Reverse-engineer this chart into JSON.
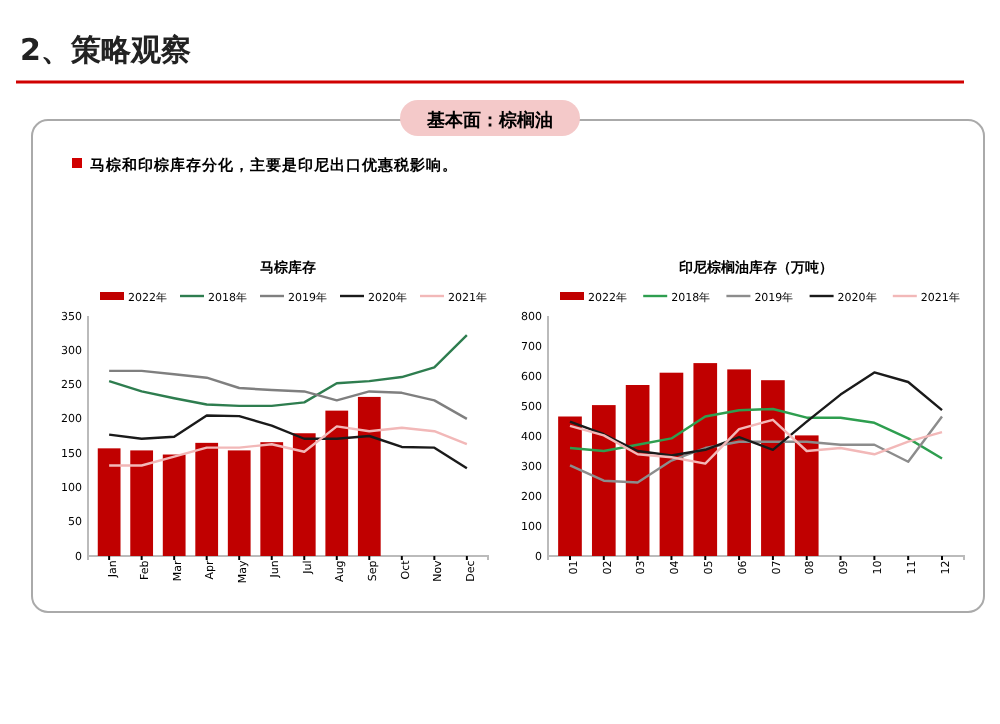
{
  "chart_data": [
    {
      "type": "bar",
      "title": "马棕库存",
      "annotations": [
        "2、策略观察",
        "基本面：棕榈油",
        "马棕和印棕库存分化，主要是印尼出口优惠税影响。"
      ],
      "categories": [
        "Jan",
        "Feb",
        "Mar",
        "Apr",
        "May",
        "Jun",
        "Jul",
        "Aug",
        "Sep",
        "Oct",
        "Nov",
        "Dec"
      ],
      "ylim": [
        0,
        350
      ],
      "yticks": [
        0,
        50,
        100,
        150,
        200,
        250,
        300,
        350
      ],
      "grid": false,
      "legend": "top",
      "series": [
        {
          "name": "2022年",
          "color": "#c00000",
          "values": [
            157,
            154,
            148,
            165,
            154,
            166,
            179,
            212,
            232,
            null,
            null,
            null
          ]
        },
        {
          "name": "2018年",
          "type": "line",
          "color": "#2e7d4f",
          "values": [
            255,
            240,
            230,
            221,
            219,
            219,
            224,
            252,
            255,
            261,
            275,
            322
          ]
        },
        {
          "name": "2019年",
          "type": "line",
          "color": "#7f7f7f",
          "values": [
            270,
            270,
            265,
            260,
            245,
            242,
            240,
            227,
            240,
            238,
            227,
            200
          ]
        },
        {
          "name": "2020年",
          "type": "line",
          "color": "#1a1a1a",
          "values": [
            177,
            171,
            174,
            205,
            204,
            190,
            171,
            171,
            175,
            159,
            158,
            128
          ]
        },
        {
          "name": "2021年",
          "type": "line",
          "color": "#f2b8b8",
          "values": [
            132,
            132,
            145,
            158,
            158,
            163,
            152,
            189,
            182,
            187,
            182,
            163
          ]
        }
      ]
    },
    {
      "type": "bar",
      "title": "印尼棕榈油库存（万吨）",
      "categories": [
        "01",
        "02",
        "03",
        "04",
        "05",
        "06",
        "07",
        "08",
        "09",
        "10",
        "11",
        "12"
      ],
      "ylim": [
        0,
        800
      ],
      "yticks": [
        0,
        100,
        200,
        300,
        400,
        500,
        600,
        700,
        800
      ],
      "grid": false,
      "legend": "top",
      "series": [
        {
          "name": "2022年",
          "color": "#c00000",
          "values": [
            465,
            503,
            570,
            611,
            643,
            622,
            586,
            402,
            null,
            null,
            null,
            null
          ]
        },
        {
          "name": "2018年",
          "type": "line",
          "color": "#2e9e4f",
          "values": [
            360,
            350,
            371,
            392,
            465,
            486,
            490,
            461,
            461,
            444,
            392,
            325
          ]
        },
        {
          "name": "2019年",
          "type": "line",
          "color": "#8c8c8c",
          "values": [
            302,
            251,
            245,
            318,
            360,
            381,
            381,
            381,
            371,
            371,
            314,
            465
          ]
        },
        {
          "name": "2020年",
          "type": "line",
          "color": "#1a1a1a",
          "values": [
            448,
            406,
            350,
            335,
            354,
            396,
            354,
            448,
            538,
            612,
            580,
            486
          ]
        },
        {
          "name": "2021年",
          "type": "line",
          "color": "#f2b8b8",
          "values": [
            434,
            402,
            339,
            329,
            308,
            423,
            454,
            350,
            360,
            339,
            381,
            413
          ]
        }
      ]
    }
  ]
}
